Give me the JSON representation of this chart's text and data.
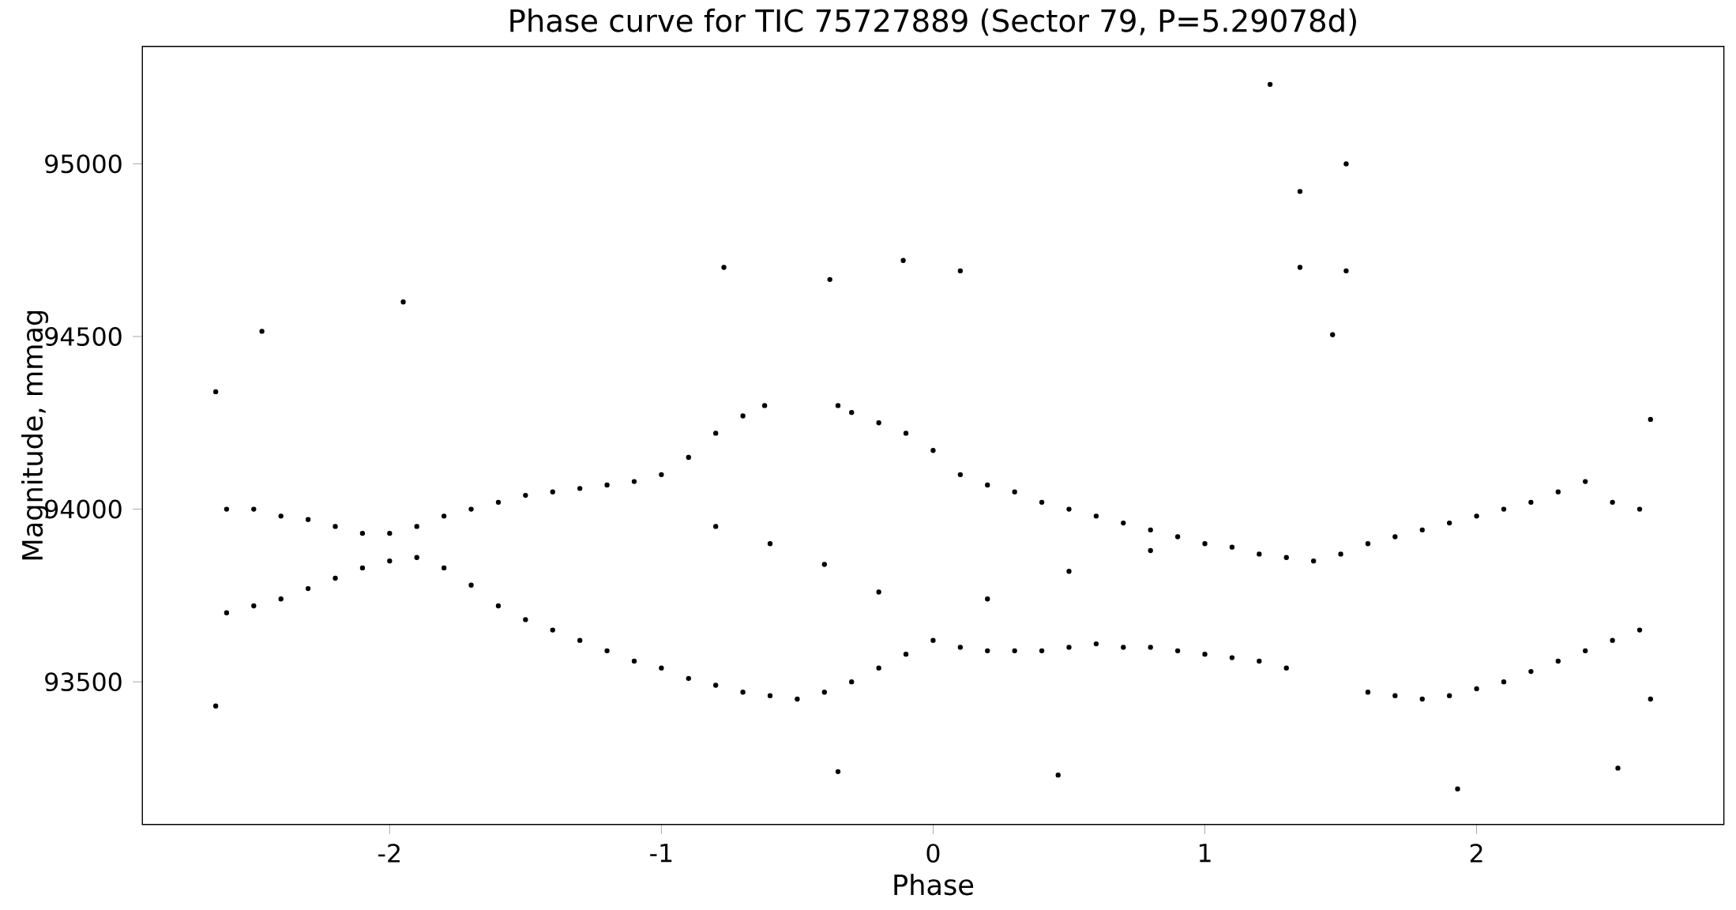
{
  "chart_data": {
    "type": "scatter",
    "title": "Phase curve for TIC 75727889 (Sector 79, P=5.29078d)",
    "xlabel": "Phase",
    "ylabel": "Magnitude, mmag",
    "xlim": [
      -2.91,
      2.91
    ],
    "ylim": [
      93087,
      95340
    ],
    "xticks": [
      -2,
      -1,
      0,
      1,
      2
    ],
    "yticks": [
      93500,
      94000,
      94500,
      95000
    ],
    "grid": false,
    "marker": "circle",
    "series": [
      {
        "color": "#000000",
        "x": [
          -2.6,
          -2.5,
          -2.4,
          -2.3,
          -2.2,
          -2.1,
          -2.0,
          -1.9,
          -1.8,
          -1.7,
          -1.6,
          -1.5,
          -1.4,
          -1.3,
          -1.2,
          -1.1,
          -1.0,
          -0.9,
          -0.8,
          -0.7,
          -0.62,
          -0.35,
          -0.3,
          -0.2,
          -0.1,
          0.0,
          0.1,
          0.2,
          0.3,
          0.4,
          0.5,
          0.6,
          0.7,
          0.8,
          0.9,
          1.0,
          1.1,
          1.2,
          1.3,
          1.4,
          1.5,
          1.6,
          1.7,
          1.8,
          1.9,
          2.0,
          2.1,
          2.2,
          2.3,
          2.4,
          2.5,
          2.6,
          -2.6,
          -2.5,
          -2.4,
          -2.3,
          -2.2,
          -2.1,
          -2.0,
          -1.9,
          -1.8,
          -1.7,
          -1.6,
          -1.5,
          -1.4,
          -1.3,
          -1.2,
          -1.1,
          -1.0,
          -0.9,
          -0.8,
          -0.7,
          -0.6,
          -0.5,
          -0.4,
          -0.3,
          -0.2,
          -0.1,
          0.0,
          0.1,
          0.2,
          0.3,
          0.4,
          0.5,
          0.6,
          0.7,
          0.8,
          0.9,
          1.0,
          1.1,
          1.2,
          1.3,
          1.6,
          1.7,
          1.8,
          1.9,
          2.0,
          2.1,
          2.2,
          2.3,
          2.4,
          2.5,
          2.6,
          -0.8,
          -0.6,
          -0.4,
          -0.2,
          0.2,
          0.5,
          0.8,
          -2.64,
          -2.64,
          2.64,
          2.64,
          1.24,
          1.35,
          1.52,
          1.35,
          1.52,
          -0.11,
          -0.77,
          -1.95,
          0.1,
          -0.38,
          -2.47,
          1.47,
          0.46,
          1.93,
          2.52,
          -0.35
        ],
        "values": [
          94000,
          94000,
          93980,
          93970,
          93950,
          93930,
          93930,
          93950,
          93980,
          94000,
          94020,
          94040,
          94050,
          94060,
          94070,
          94080,
          94100,
          94150,
          94220,
          94270,
          94300,
          94300,
          94280,
          94250,
          94220,
          94170,
          94100,
          94070,
          94050,
          94020,
          94000,
          93980,
          93960,
          93940,
          93920,
          93900,
          93890,
          93870,
          93860,
          93850,
          93870,
          93900,
          93920,
          93940,
          93960,
          93980,
          94000,
          94020,
          94050,
          94080,
          94020,
          94000,
          93700,
          93720,
          93740,
          93770,
          93800,
          93830,
          93850,
          93860,
          93830,
          93780,
          93720,
          93680,
          93650,
          93620,
          93590,
          93560,
          93540,
          93510,
          93490,
          93470,
          93460,
          93450,
          93470,
          93500,
          93540,
          93580,
          93620,
          93600,
          93590,
          93590,
          93590,
          93600,
          93610,
          93600,
          93600,
          93590,
          93580,
          93570,
          93560,
          93540,
          93470,
          93460,
          93450,
          93460,
          93480,
          93500,
          93530,
          93560,
          93590,
          93620,
          93650,
          93950,
          93900,
          93840,
          93760,
          93740,
          93820,
          93880,
          94340,
          93430,
          94260,
          93450,
          95230,
          94920,
          95000,
          94700,
          94690,
          94720,
          94700,
          94600,
          94690,
          94665,
          94515,
          94505,
          93230,
          93190,
          93250,
          93240
        ]
      }
    ]
  }
}
